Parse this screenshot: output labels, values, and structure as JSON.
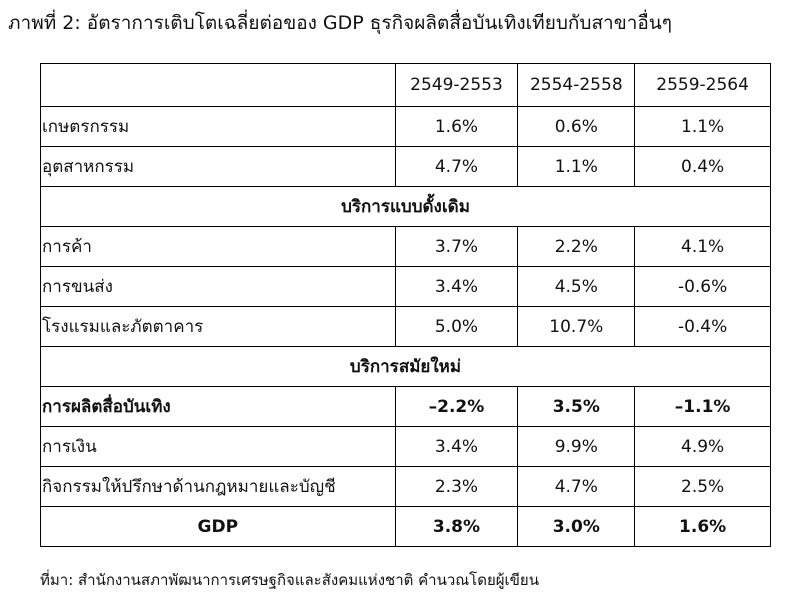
{
  "title": "ภาพที่ 2: อัตราการเติบโตเฉลี่ยต่อของ GDP ธุรกิจผลิตสื่อบันเทิงเทียบกับสาขาอื่นๆ",
  "table": {
    "columns": [
      "2549-2553",
      "2554-2558",
      "2559-2564"
    ],
    "rows": [
      {
        "label": "เกษตรกรรม",
        "values": [
          "1.6%",
          "0.6%",
          "1.1%"
        ]
      },
      {
        "label": "อุตสาหกรรม",
        "values": [
          "4.7%",
          "1.1%",
          "0.4%"
        ]
      },
      {
        "section": "บริการแบบดั้งเดิม"
      },
      {
        "label": "การค้า",
        "values": [
          "3.7%",
          "2.2%",
          "4.1%"
        ]
      },
      {
        "label": "การขนส่ง",
        "values": [
          "3.4%",
          "4.5%",
          "-0.6%"
        ]
      },
      {
        "label": "โรงแรมและภัตตาคาร",
        "values": [
          "5.0%",
          "10.7%",
          "-0.4%"
        ]
      },
      {
        "section": "บริการสมัยใหม่"
      },
      {
        "label": "การผลิตสื่อบันเทิง",
        "values": [
          "–2.2%",
          "3.5%",
          "–1.1%"
        ],
        "bold": true
      },
      {
        "label": "การเงิน",
        "values": [
          "3.4%",
          "9.9%",
          "4.9%"
        ]
      },
      {
        "label": "กิจกรรมให้ปรึกษาด้านกฎหมายและบัญชี",
        "values": [
          "2.3%",
          "4.7%",
          "2.5%"
        ]
      },
      {
        "label": "GDP",
        "values": [
          "3.8%",
          "3.0%",
          "1.6%"
        ],
        "bold": true,
        "centered": true
      }
    ]
  },
  "source": "ที่มา: สำนักงานสภาพัฒนาการเศรษฐกิจและสังคมแห่งชาติ คำนวณโดยผู้เขียน"
}
